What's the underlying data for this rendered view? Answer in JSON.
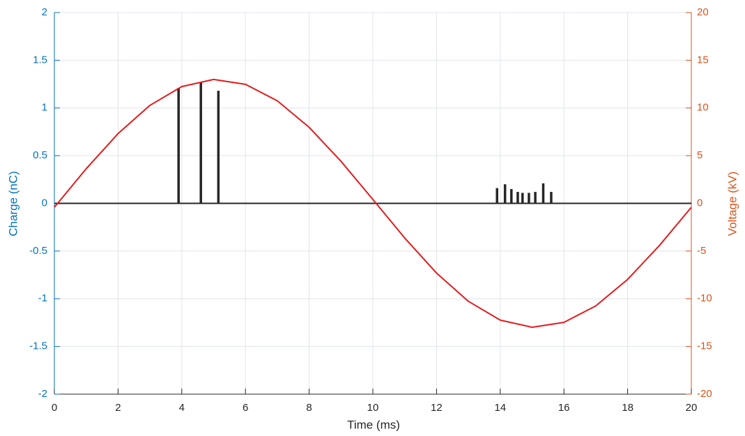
{
  "chart_data": {
    "type": "line",
    "xlabel": "Time (ms)",
    "ylabel": "Charge (nC)",
    "y2label": "Voltage (kV)",
    "xlim": [
      0,
      20
    ],
    "xticks": [
      0,
      2,
      4,
      6,
      8,
      10,
      12,
      14,
      16,
      18,
      20
    ],
    "ylim": [
      -2,
      2
    ],
    "yticks": [
      -2,
      -1.5,
      -1,
      -0.5,
      0,
      0.5,
      1,
      1.5,
      2
    ],
    "y2lim": [
      -20,
      20
    ],
    "y2ticks": [
      -20,
      -15,
      -10,
      -5,
      0,
      5,
      10,
      15,
      20
    ],
    "grid": true,
    "ycolor": "#0072bd",
    "y2color": "#d95319",
    "series": [
      {
        "type": "stem",
        "color": "#262626",
        "x": [
          3.9,
          4.6,
          5.15,
          13.9,
          14.15,
          14.35,
          14.55,
          14.7,
          14.9,
          15.1,
          15.35,
          15.6
        ],
        "values": [
          1.21,
          1.27,
          1.18,
          0.16,
          0.2,
          0.15,
          0.12,
          0.11,
          0.11,
          0.12,
          0.21,
          0.12
        ]
      },
      {
        "type": "line",
        "axis": "y2",
        "color": "#e31a1c",
        "x": [
          0,
          1,
          2,
          3,
          4,
          5,
          6,
          7,
          8,
          9,
          10,
          11,
          12,
          13,
          14,
          15,
          16,
          17,
          18,
          19,
          20
        ],
        "values": [
          -0.41,
          3.63,
          7.31,
          10.27,
          12.24,
          12.99,
          12.48,
          10.75,
          7.97,
          4.41,
          0.41,
          -3.63,
          -7.31,
          -10.27,
          -12.24,
          -12.99,
          -12.48,
          -10.75,
          -7.97,
          -4.41,
          -0.41
        ]
      }
    ]
  }
}
